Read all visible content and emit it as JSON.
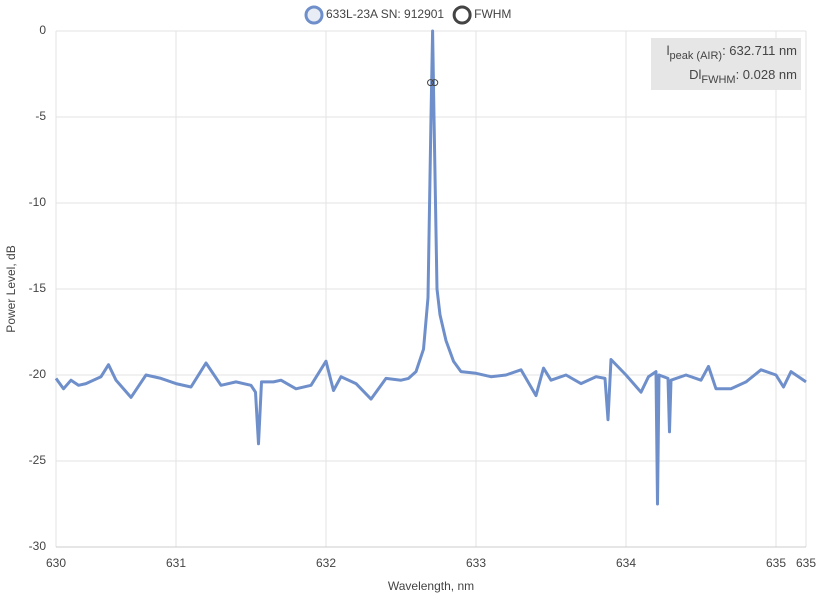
{
  "chart_data": {
    "type": "line",
    "x_label": "Wavelength, nm",
    "y_label": "Power Level, dB",
    "xlim": [
      630.2,
      635.2
    ],
    "ylim": [
      -30,
      0
    ],
    "xticks": [
      {
        "value": 630.2,
        "label": "630"
      },
      631,
      632,
      633,
      634,
      635,
      {
        "value": 635.2,
        "label": "635"
      }
    ],
    "yticks": [
      0,
      -5,
      -10,
      -15,
      -20,
      -25,
      -30
    ],
    "grid": true,
    "series": [
      {
        "name": "633L-23A SN: 912901",
        "color": "#6f8fcb",
        "x": [
          630.2,
          630.25,
          630.3,
          630.35,
          630.4,
          630.5,
          630.55,
          630.6,
          630.7,
          630.8,
          630.9,
          631.0,
          631.1,
          631.2,
          631.3,
          631.4,
          631.5,
          631.53,
          631.55,
          631.57,
          631.65,
          631.7,
          631.8,
          631.9,
          632.0,
          632.05,
          632.1,
          632.2,
          632.3,
          632.4,
          632.5,
          632.55,
          632.6,
          632.65,
          632.68,
          632.7,
          632.711,
          632.72,
          632.74,
          632.76,
          632.8,
          632.85,
          632.9,
          633.0,
          633.1,
          633.2,
          633.3,
          633.4,
          633.45,
          633.5,
          633.6,
          633.7,
          633.8,
          633.86,
          633.88,
          633.9,
          634.0,
          634.1,
          634.15,
          634.2,
          634.21,
          634.22,
          634.28,
          634.29,
          634.3,
          634.4,
          634.5,
          634.55,
          634.6,
          634.7,
          634.8,
          634.9,
          635.0,
          635.05,
          635.1,
          635.15,
          635.2
        ],
        "values": [
          -20.2,
          -20.8,
          -20.3,
          -20.6,
          -20.5,
          -20.1,
          -19.4,
          -20.3,
          -21.3,
          -20.0,
          -20.2,
          -20.5,
          -20.7,
          -19.3,
          -20.6,
          -20.4,
          -20.6,
          -21.0,
          -24.0,
          -20.4,
          -20.4,
          -20.3,
          -20.8,
          -20.6,
          -19.2,
          -20.9,
          -20.1,
          -20.5,
          -21.4,
          -20.2,
          -20.3,
          -20.2,
          -19.8,
          -18.5,
          -15.5,
          -5.0,
          0,
          -5.0,
          -15.0,
          -16.5,
          -18.0,
          -19.2,
          -19.8,
          -19.9,
          -20.1,
          -20.0,
          -19.7,
          -21.2,
          -19.6,
          -20.3,
          -20.0,
          -20.5,
          -20.1,
          -20.2,
          -22.6,
          -19.1,
          -20.0,
          -21.0,
          -20.1,
          -19.8,
          -27.5,
          -20.0,
          -20.2,
          -23.3,
          -20.3,
          -20.0,
          -20.3,
          -19.5,
          -20.8,
          -20.8,
          -20.4,
          -19.7,
          -20.0,
          -20.7,
          -19.8,
          -20.1,
          -20.4
        ]
      },
      {
        "name": "FWHM",
        "color": "#444444",
        "x": [
          632.697,
          632.725
        ],
        "values": [
          -3,
          -3
        ]
      }
    ],
    "annotations": [
      {
        "symbol": "l",
        "subscript": "peak (AIR)",
        "value": ": 632.711 nm"
      },
      {
        "symbol": "Dl",
        "subscript": "FWHM",
        "value": ": 0.028 nm"
      }
    ]
  }
}
